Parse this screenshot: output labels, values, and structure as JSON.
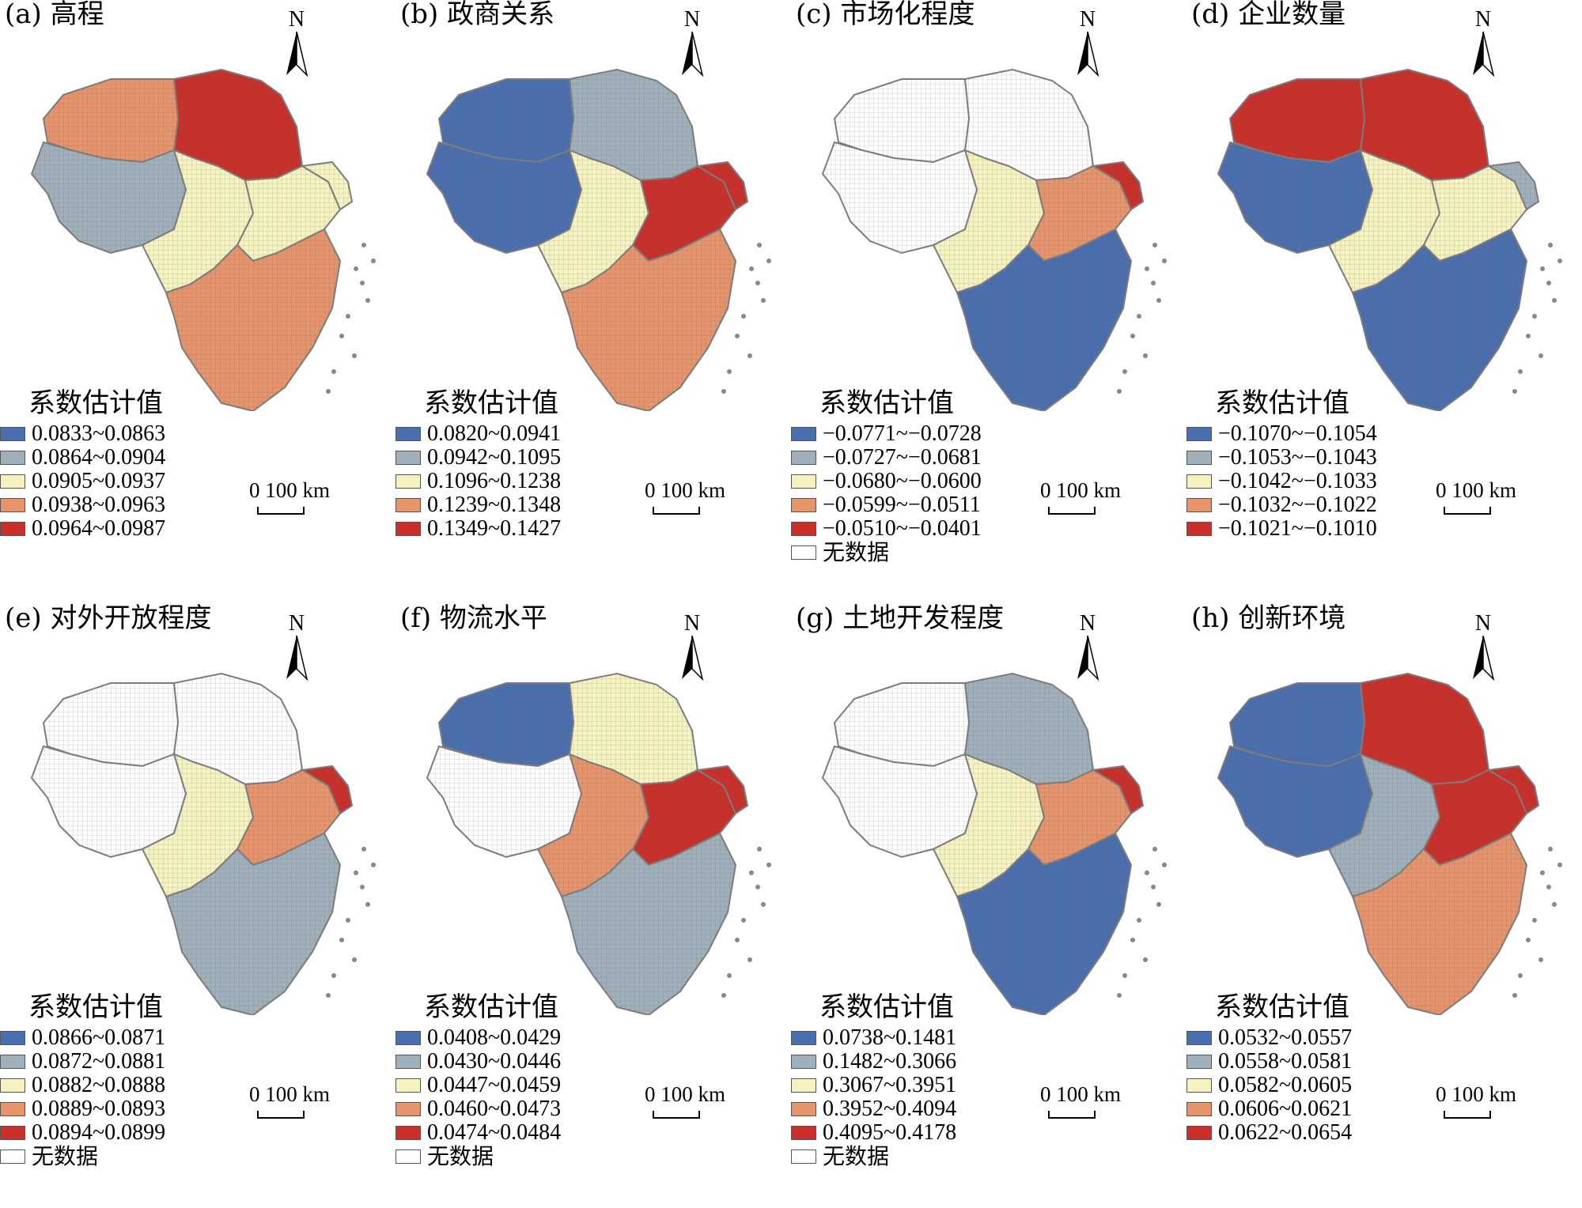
{
  "north_letter": "N",
  "scale_text": "0   100 km",
  "legend_title": "系数估计值",
  "no_data_label": "无数据",
  "colors": {
    "blue": "#4a6fb0",
    "gray": "#9fb0bb",
    "yellow": "#f7f3c1",
    "orange": "#e8946b",
    "red": "#cc2f2a",
    "white": "#ffffff"
  },
  "region_order": [
    "north",
    "northwest",
    "west",
    "center",
    "east",
    "shanghai",
    "south"
  ],
  "panels": [
    {
      "title": "(a) 高程",
      "regions": {
        "north": "red",
        "northwest": "orange",
        "west": "gray",
        "center": "yellow",
        "east": "yellow",
        "shanghai": "yellow",
        "south": "orange"
      },
      "legend": [
        {
          "color": "blue",
          "label": "0.0833~0.0863"
        },
        {
          "color": "gray",
          "label": "0.0864~0.0904"
        },
        {
          "color": "yellow",
          "label": "0.0905~0.0937"
        },
        {
          "color": "orange",
          "label": "0.0938~0.0963"
        },
        {
          "color": "red",
          "label": "0.0964~0.0987"
        }
      ],
      "no_data": false
    },
    {
      "title": "(b) 政商关系",
      "regions": {
        "north": "gray",
        "northwest": "blue",
        "west": "blue",
        "center": "yellow",
        "east": "red",
        "shanghai": "red",
        "south": "orange"
      },
      "legend": [
        {
          "color": "blue",
          "label": "0.0820~0.0941"
        },
        {
          "color": "gray",
          "label": "0.0942~0.1095"
        },
        {
          "color": "yellow",
          "label": "0.1096~0.1238"
        },
        {
          "color": "orange",
          "label": "0.1239~0.1348"
        },
        {
          "color": "red",
          "label": "0.1349~0.1427"
        }
      ],
      "no_data": false
    },
    {
      "title": "(c) 市场化程度",
      "regions": {
        "north": "white",
        "northwest": "white",
        "west": "white",
        "center": "yellow",
        "east": "orange",
        "shanghai": "red",
        "south": "blue"
      },
      "legend": [
        {
          "color": "blue",
          "label": "−0.0771~−0.0728"
        },
        {
          "color": "gray",
          "label": "−0.0727~−0.0681"
        },
        {
          "color": "yellow",
          "label": "−0.0680~−0.0600"
        },
        {
          "color": "orange",
          "label": "−0.0599~−0.0511"
        },
        {
          "color": "red",
          "label": "−0.0510~−0.0401"
        }
      ],
      "no_data": true
    },
    {
      "title": "(d) 企业数量",
      "regions": {
        "north": "red",
        "northwest": "red",
        "west": "blue",
        "center": "yellow",
        "east": "yellow",
        "shanghai": "gray",
        "south": "blue"
      },
      "legend": [
        {
          "color": "blue",
          "label": "−0.1070~−0.1054"
        },
        {
          "color": "gray",
          "label": "−0.1053~−0.1043"
        },
        {
          "color": "yellow",
          "label": "−0.1042~−0.1033"
        },
        {
          "color": "orange",
          "label": "−0.1032~−0.1022"
        },
        {
          "color": "red",
          "label": "−0.1021~−0.1010"
        }
      ],
      "no_data": false
    },
    {
      "title": "(e) 对外开放程度",
      "regions": {
        "north": "white",
        "northwest": "white",
        "west": "white",
        "center": "yellow",
        "east": "orange",
        "shanghai": "red",
        "south": "gray"
      },
      "legend": [
        {
          "color": "blue",
          "label": "0.0866~0.0871"
        },
        {
          "color": "gray",
          "label": "0.0872~0.0881"
        },
        {
          "color": "yellow",
          "label": "0.0882~0.0888"
        },
        {
          "color": "orange",
          "label": "0.0889~0.0893"
        },
        {
          "color": "red",
          "label": "0.0894~0.0899"
        }
      ],
      "no_data": true
    },
    {
      "title": "(f) 物流水平",
      "regions": {
        "north": "yellow",
        "northwest": "blue",
        "west": "white",
        "center": "orange",
        "east": "red",
        "shanghai": "red",
        "south": "gray"
      },
      "legend": [
        {
          "color": "blue",
          "label": "0.0408~0.0429"
        },
        {
          "color": "gray",
          "label": "0.0430~0.0446"
        },
        {
          "color": "yellow",
          "label": "0.0447~0.0459"
        },
        {
          "color": "orange",
          "label": "0.0460~0.0473"
        },
        {
          "color": "red",
          "label": "0.0474~0.0484"
        }
      ],
      "no_data": true
    },
    {
      "title": "(g) 土地开发程度",
      "regions": {
        "north": "gray",
        "northwest": "white",
        "west": "white",
        "center": "yellow",
        "east": "orange",
        "shanghai": "red",
        "south": "blue"
      },
      "legend": [
        {
          "color": "blue",
          "label": "0.0738~0.1481"
        },
        {
          "color": "gray",
          "label": "0.1482~0.3066"
        },
        {
          "color": "yellow",
          "label": "0.3067~0.3951"
        },
        {
          "color": "orange",
          "label": "0.3952~0.4094"
        },
        {
          "color": "red",
          "label": "0.4095~0.4178"
        }
      ],
      "no_data": true
    },
    {
      "title": "(h) 创新环境",
      "regions": {
        "north": "red",
        "northwest": "blue",
        "west": "blue",
        "center": "gray",
        "east": "red",
        "shanghai": "red",
        "south": "orange"
      },
      "legend": [
        {
          "color": "blue",
          "label": "0.0532~0.0557"
        },
        {
          "color": "gray",
          "label": "0.0558~0.0581"
        },
        {
          "color": "yellow",
          "label": "0.0582~0.0605"
        },
        {
          "color": "orange",
          "label": "0.0606~0.0621"
        },
        {
          "color": "red",
          "label": "0.0622~0.0654"
        }
      ],
      "no_data": false
    }
  ]
}
